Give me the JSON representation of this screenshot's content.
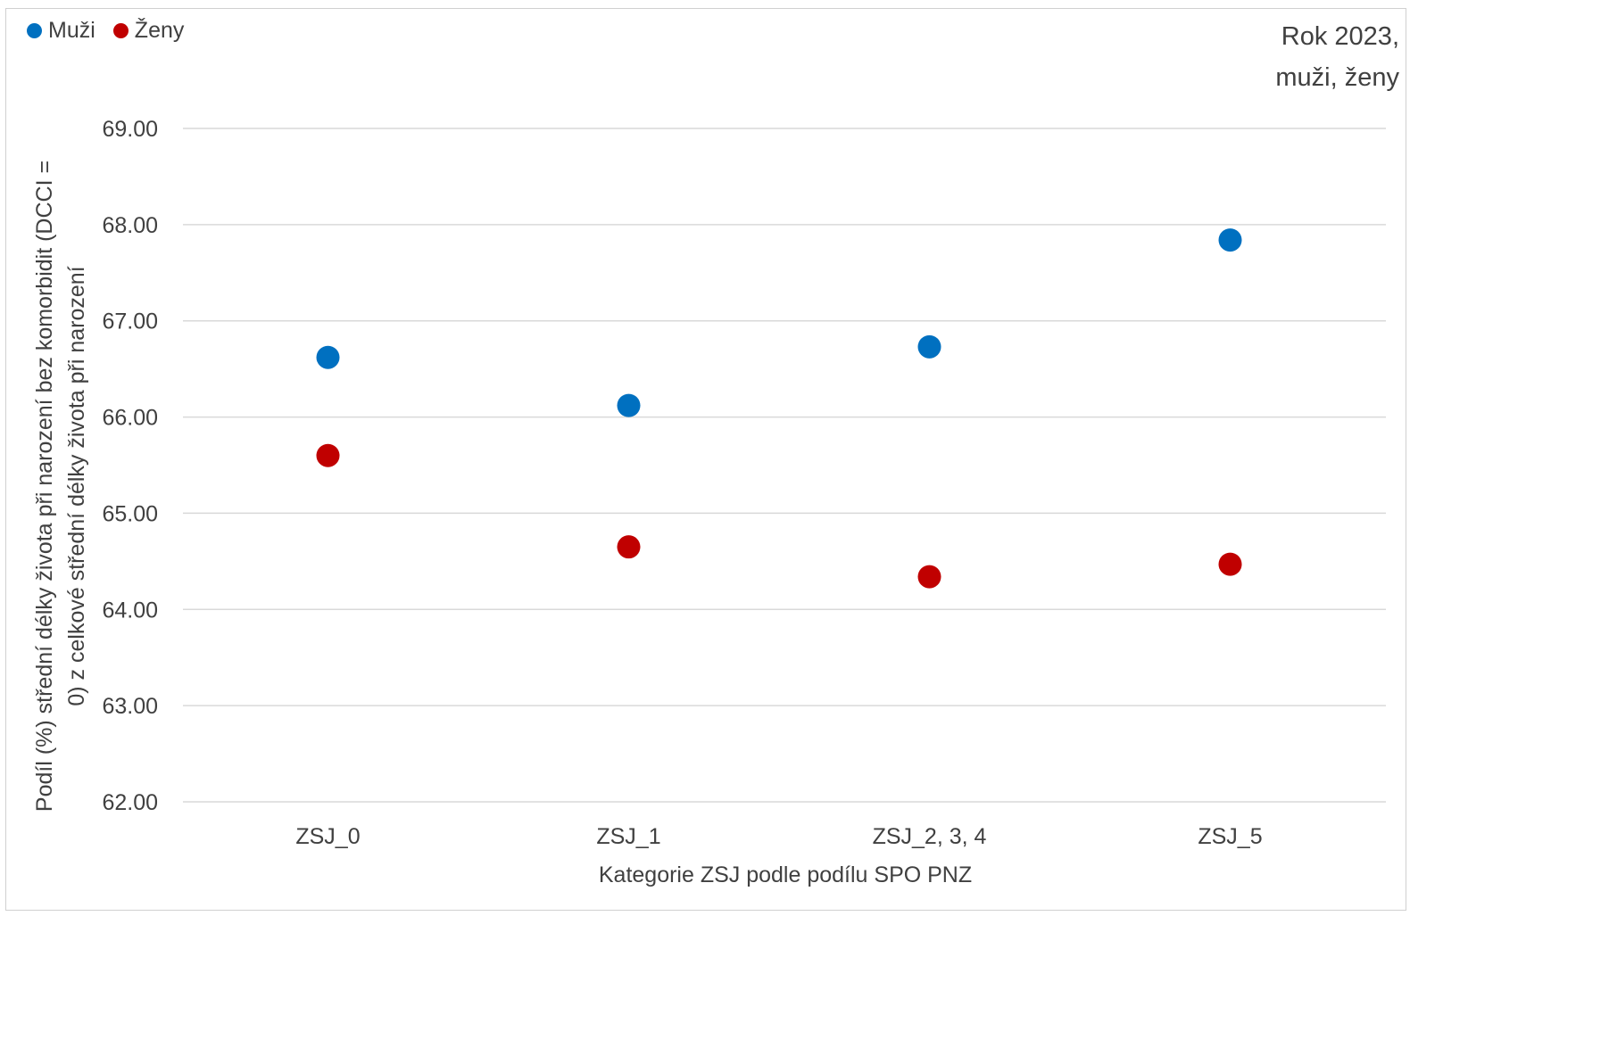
{
  "chart_data": {
    "type": "scatter",
    "title": "Rok 2023,",
    "subtitle": "muži, ženy",
    "xlabel": "Kategorie ZSJ podle podílu SPO PNZ",
    "ylabel": [
      "Podíl (%) střední délky života při narození bez komorbidit (DCCI =",
      "0) z celkové střední délky života při narození"
    ],
    "categories": [
      "ZSJ_0",
      "ZSJ_1",
      "ZSJ_2, 3, 4",
      "ZSJ_5"
    ],
    "ylim": [
      62,
      69
    ],
    "yticks": [
      "62.00",
      "63.00",
      "64.00",
      "65.00",
      "66.00",
      "67.00",
      "68.00",
      "69.00"
    ],
    "grid": true,
    "legend": "top-left",
    "series": [
      {
        "name": "Muži",
        "color": "#0070C0",
        "values": [
          66.62,
          66.12,
          66.73,
          67.84
        ]
      },
      {
        "name": "Ženy",
        "color": "#C00000",
        "values": [
          65.6,
          64.65,
          64.34,
          64.47
        ]
      }
    ]
  }
}
